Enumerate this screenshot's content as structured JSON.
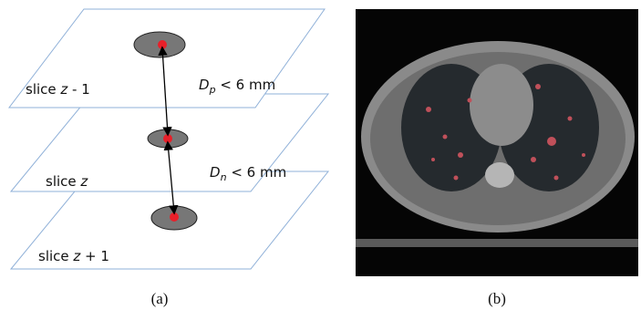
{
  "panel_a": {
    "slices": [
      {
        "prefix": "slice ",
        "var": "z",
        "suffix": " - 1"
      },
      {
        "prefix": "slice ",
        "var": "z"
      },
      {
        "prefix": "slice ",
        "var": "z",
        "suffix": " + 1"
      }
    ],
    "distances": [
      {
        "symbol": "D",
        "subscript": "p",
        "relation": " < 6 mm"
      },
      {
        "symbol": "D",
        "subscript": "n",
        "relation": " < 6 mm"
      }
    ],
    "caption": "(a)"
  },
  "panel_b": {
    "caption": "(b)"
  }
}
